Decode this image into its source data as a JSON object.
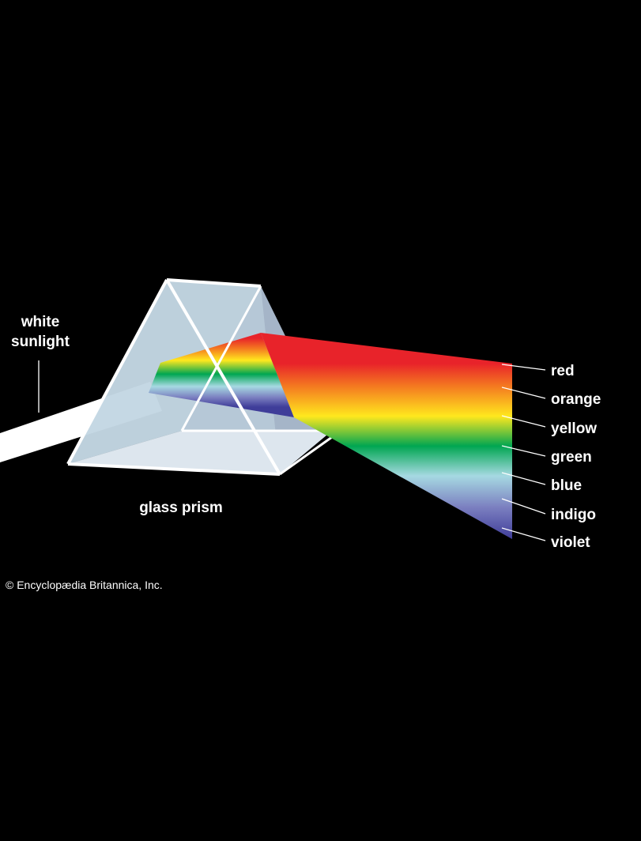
{
  "labels": {
    "white_sunlight_line1": "white",
    "white_sunlight_line2": "sunlight",
    "glass_prism": "glass prism",
    "colors": [
      "red",
      "orange",
      "yellow",
      "green",
      "blue",
      "indigo",
      "violet"
    ]
  },
  "credit": "© Encyclopædia Britannica, Inc.",
  "spectrum_colors": [
    "#e8232a",
    "#f47a20",
    "#ffe81e",
    "#00a651",
    "#a6d9e2",
    "#7b7fc0",
    "#3f3d99"
  ],
  "colors": {
    "background": "#000000",
    "prism_glass": "#dbe6ee",
    "prism_edge": "#ffffff",
    "text": "#ffffff"
  }
}
